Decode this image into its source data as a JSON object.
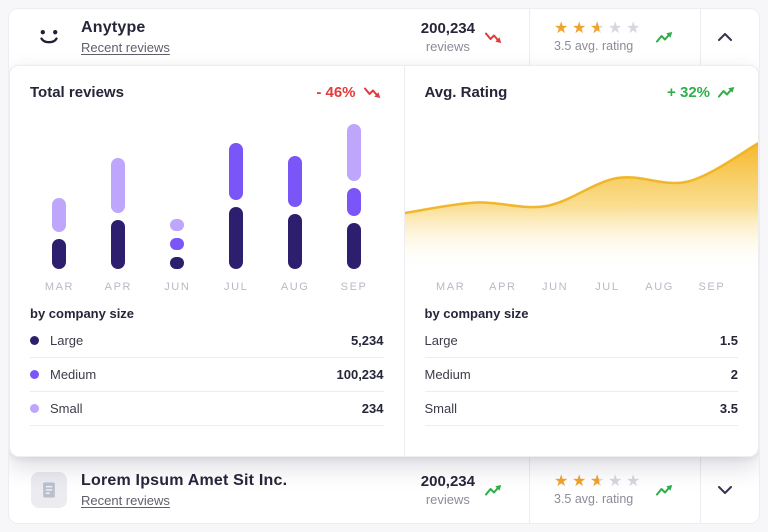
{
  "colors": {
    "accent_dark": "#2e1f6e",
    "accent_mid": "#7a55f7",
    "accent_light": "#bda6fb",
    "red": "#e23b3b",
    "green": "#2fae4a",
    "gold": "#f5b41f",
    "star": "#f0a32a",
    "star_empty": "#d7d7df",
    "text_dark": "#26263a",
    "text_gray": "#8c8c99",
    "axis_muted": "#b9b9c6",
    "border": "#ececf1"
  },
  "header": {
    "title": "Anytype",
    "link": "Recent reviews",
    "reviews_value": "200,234",
    "reviews_label": "reviews",
    "stars": 2.5,
    "rating_caption": "3.5 avg. rating"
  },
  "panel": {
    "left": {
      "breakdown_title": "by company size",
      "rows": [
        {
          "label": "Large",
          "value": "5,234",
          "color": "#2e1f6e"
        },
        {
          "label": "Medium",
          "value": "100,234",
          "color": "#7a55f7"
        },
        {
          "label": "Small",
          "value": "234",
          "color": "#bda6fb"
        }
      ]
    },
    "right": {
      "breakdown_title": "by company size",
      "rows": [
        {
          "label": "Large",
          "value": "1.5"
        },
        {
          "label": "Medium",
          "value": "2"
        },
        {
          "label": "Small",
          "value": "3.5"
        }
      ]
    }
  },
  "footer": {
    "title": "Lorem Ipsum Amet Sit Inc.",
    "link": "Recent reviews",
    "reviews_value": "200,234",
    "reviews_label": "reviews",
    "stars": 2.5,
    "rating_caption": "3.5 avg. rating"
  },
  "chart_data": [
    {
      "type": "bar",
      "title": "Total reviews",
      "delta": "- 46%",
      "trend": "down",
      "stacked": true,
      "categories": [
        "MAR",
        "APR",
        "JUN",
        "JUL",
        "AUG",
        "SEP"
      ],
      "unit": "relative segment height (visual estimate, px)",
      "series": [
        {
          "name": "Large",
          "color": "#2e1f6e",
          "values": [
            30,
            49,
            12,
            62,
            55,
            46
          ],
          "total": "5,234"
        },
        {
          "name": "Medium",
          "color": "#7a55f7",
          "values": [
            0,
            0,
            12,
            57,
            51,
            28
          ],
          "total": "100,234"
        },
        {
          "name": "Small",
          "color": "#bda6fb",
          "values": [
            34,
            55,
            12,
            0,
            0,
            57
          ],
          "total": "234"
        }
      ]
    },
    {
      "type": "area",
      "title": "Avg. Rating",
      "delta": "+ 32%",
      "trend": "up",
      "categories": [
        "MAR",
        "APR",
        "JUN",
        "JUL",
        "AUG",
        "SEP"
      ],
      "values": [
        1.6,
        1.9,
        1.8,
        2.6,
        2.5,
        3.6
      ],
      "ylim": [
        0,
        4
      ],
      "color": "#f5b41f",
      "by_company_size": {
        "Large": "1.5",
        "Medium": "2",
        "Small": "3.5"
      }
    }
  ]
}
